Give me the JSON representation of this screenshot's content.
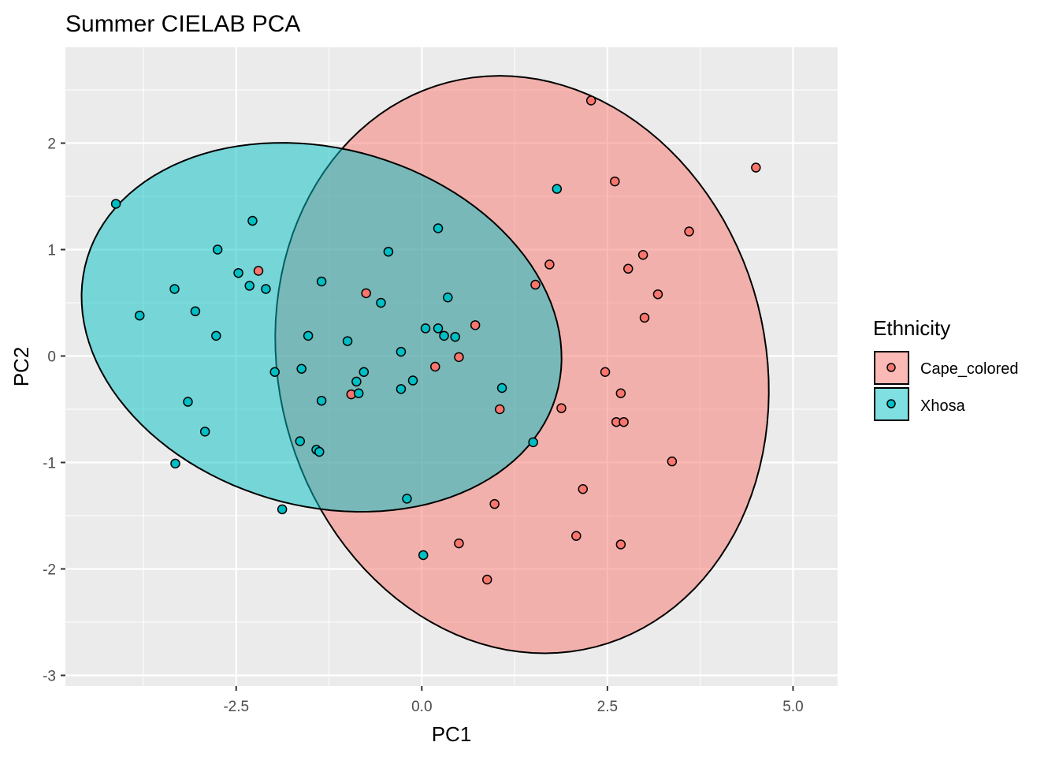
{
  "chart_data": {
    "type": "scatter",
    "title": "Summer CIELAB PCA",
    "xlabel": "PC1",
    "ylabel": "PC2",
    "xlim": [
      -4.8,
      5.6
    ],
    "ylim": [
      -3.1,
      2.9
    ],
    "xticks": [
      -2.5,
      0.0,
      2.5,
      5.0
    ],
    "xtick_labels": [
      "-2.5",
      "0.0",
      "2.5",
      "5.0"
    ],
    "yticks": [
      -3,
      -2,
      -1,
      0,
      1,
      2
    ],
    "ytick_labels": [
      "-3",
      "-2",
      "-1",
      "0",
      "1",
      "2"
    ],
    "grid": true,
    "legend": {
      "title": "Ethnicity",
      "position": "right",
      "entries": [
        "Cape_colored",
        "Xhosa"
      ]
    },
    "series": [
      {
        "name": "Cape_colored",
        "color": "#F8766D",
        "ellipse": {
          "cx": 1.35,
          "cy": -0.08,
          "rx": 3.35,
          "ry": 2.68,
          "angle_deg": -12
        },
        "points": [
          [
            2.28,
            2.4
          ],
          [
            4.5,
            1.77
          ],
          [
            2.6,
            1.64
          ],
          [
            3.6,
            1.17
          ],
          [
            2.98,
            0.95
          ],
          [
            1.72,
            0.86
          ],
          [
            2.78,
            0.82
          ],
          [
            1.53,
            0.67
          ],
          [
            3.18,
            0.58
          ],
          [
            3.0,
            0.36
          ],
          [
            0.72,
            0.29
          ],
          [
            -0.75,
            0.59
          ],
          [
            -2.2,
            0.8
          ],
          [
            0.5,
            -0.01
          ],
          [
            0.18,
            -0.1
          ],
          [
            -0.95,
            -0.36
          ],
          [
            2.47,
            -0.15
          ],
          [
            2.68,
            -0.35
          ],
          [
            1.88,
            -0.49
          ],
          [
            1.05,
            -0.5
          ],
          [
            2.62,
            -0.62
          ],
          [
            2.72,
            -0.62
          ],
          [
            3.37,
            -0.99
          ],
          [
            2.17,
            -1.25
          ],
          [
            0.98,
            -1.39
          ],
          [
            2.08,
            -1.69
          ],
          [
            0.5,
            -1.76
          ],
          [
            2.68,
            -1.77
          ],
          [
            0.88,
            -2.1
          ]
        ]
      },
      {
        "name": "Xhosa",
        "color": "#00BFC4",
        "ellipse": {
          "cx": -1.35,
          "cy": 0.27,
          "rx": 3.25,
          "ry": 1.7,
          "angle_deg": -7
        },
        "points": [
          [
            -4.12,
            1.43
          ],
          [
            -2.28,
            1.27
          ],
          [
            -2.75,
            1.0
          ],
          [
            -2.47,
            0.78
          ],
          [
            -2.32,
            0.66
          ],
          [
            -2.1,
            0.63
          ],
          [
            -3.33,
            0.63
          ],
          [
            -1.35,
            0.7
          ],
          [
            -3.8,
            0.38
          ],
          [
            -3.05,
            0.42
          ],
          [
            -2.77,
            0.19
          ],
          [
            -1.53,
            0.19
          ],
          [
            -1.0,
            0.14
          ],
          [
            -0.45,
            0.98
          ],
          [
            0.22,
            1.2
          ],
          [
            -0.55,
            0.5
          ],
          [
            0.35,
            0.55
          ],
          [
            0.05,
            0.26
          ],
          [
            0.22,
            0.26
          ],
          [
            0.3,
            0.19
          ],
          [
            0.45,
            0.18
          ],
          [
            1.82,
            1.57
          ],
          [
            -0.28,
            0.04
          ],
          [
            -1.98,
            -0.15
          ],
          [
            -1.62,
            -0.12
          ],
          [
            -0.78,
            -0.15
          ],
          [
            -0.88,
            -0.24
          ],
          [
            -0.85,
            -0.35
          ],
          [
            -0.28,
            -0.31
          ],
          [
            -0.12,
            -0.23
          ],
          [
            1.08,
            -0.3
          ],
          [
            -3.15,
            -0.43
          ],
          [
            -1.35,
            -0.42
          ],
          [
            -2.92,
            -0.71
          ],
          [
            -1.64,
            -0.8
          ],
          [
            -1.42,
            -0.88
          ],
          [
            -1.38,
            -0.9
          ],
          [
            1.5,
            -0.81
          ],
          [
            -3.32,
            -1.01
          ],
          [
            -0.2,
            -1.34
          ],
          [
            -1.88,
            -1.44
          ],
          [
            0.02,
            -1.87
          ]
        ]
      }
    ]
  }
}
